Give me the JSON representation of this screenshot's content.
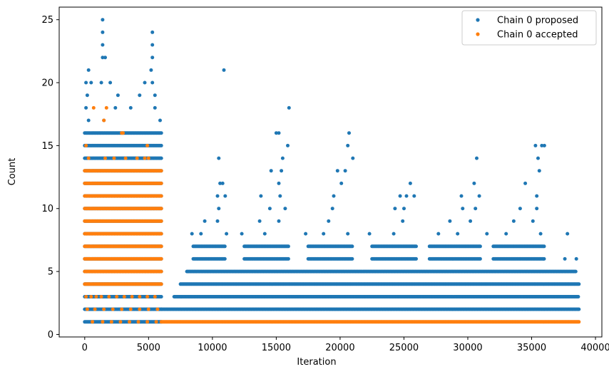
{
  "chart_data": {
    "type": "scatter",
    "xlabel": "Iteration",
    "ylabel": "Count",
    "xlim": [
      -2000,
      40500
    ],
    "ylim": [
      -0.2,
      26
    ],
    "x_ticks": [
      0,
      5000,
      10000,
      15000,
      20000,
      25000,
      30000,
      35000,
      40000
    ],
    "x_tick_labels": [
      "0",
      "5000",
      "10000",
      "15000",
      "20000",
      "25000",
      "30000",
      "35000",
      "40000"
    ],
    "y_ticks": [
      0,
      5,
      10,
      15,
      20,
      25
    ],
    "y_tick_labels": [
      "0",
      "5",
      "10",
      "15",
      "20",
      "25"
    ],
    "grid": false,
    "legend_position": "top-right",
    "series": [
      {
        "name": "Chain 0 proposed",
        "color": "#1f77b4",
        "band_ranges": [
          [
            0,
            6000,
            1,
            13
          ],
          [
            0,
            6000,
            14,
            16
          ],
          [
            6000,
            38700,
            2,
            2
          ],
          [
            7000,
            38700,
            3,
            3
          ],
          [
            7500,
            38700,
            4,
            4
          ],
          [
            8000,
            38500,
            5,
            5
          ],
          [
            8500,
            11000,
            6,
            7
          ],
          [
            12500,
            16000,
            6,
            7
          ],
          [
            17500,
            21000,
            6,
            7
          ],
          [
            22500,
            26000,
            6,
            7
          ],
          [
            27000,
            31000,
            6,
            7
          ],
          [
            32000,
            36000,
            6,
            7
          ]
        ],
        "scattered": [
          [
            1400,
            25
          ],
          [
            1400,
            24
          ],
          [
            5300,
            24
          ],
          [
            1400,
            23
          ],
          [
            5300,
            23
          ],
          [
            1400,
            22
          ],
          [
            1600,
            22
          ],
          [
            5300,
            22
          ],
          [
            300,
            21
          ],
          [
            5200,
            21
          ],
          [
            10900,
            21
          ],
          [
            100,
            20
          ],
          [
            500,
            20
          ],
          [
            1300,
            20
          ],
          [
            2000,
            20
          ],
          [
            4700,
            20
          ],
          [
            5300,
            20
          ],
          [
            200,
            19
          ],
          [
            2600,
            19
          ],
          [
            4300,
            19
          ],
          [
            5500,
            19
          ],
          [
            100,
            18
          ],
          [
            2400,
            18
          ],
          [
            3600,
            18
          ],
          [
            5500,
            18
          ],
          [
            16000,
            18
          ],
          [
            300,
            17
          ],
          [
            1500,
            17
          ],
          [
            5900,
            17
          ],
          [
            15000,
            16
          ],
          [
            15200,
            16
          ],
          [
            20700,
            16
          ],
          [
            20600,
            15
          ],
          [
            15900,
            15
          ],
          [
            35300,
            15
          ],
          [
            35800,
            15
          ],
          [
            36000,
            15
          ],
          [
            10500,
            14
          ],
          [
            15500,
            14
          ],
          [
            21000,
            14
          ],
          [
            30700,
            14
          ],
          [
            35500,
            14
          ],
          [
            10600,
            12
          ],
          [
            10800,
            12
          ],
          [
            15200,
            12
          ],
          [
            20100,
            12
          ],
          [
            25500,
            12
          ],
          [
            30500,
            12
          ],
          [
            34500,
            12
          ],
          [
            14600,
            13
          ],
          [
            15400,
            13
          ],
          [
            19800,
            13
          ],
          [
            20400,
            13
          ],
          [
            35600,
            13
          ],
          [
            10400,
            11
          ],
          [
            11000,
            11
          ],
          [
            13800,
            11
          ],
          [
            15300,
            11
          ],
          [
            19500,
            11
          ],
          [
            24700,
            11
          ],
          [
            25200,
            11
          ],
          [
            25800,
            11
          ],
          [
            29500,
            11
          ],
          [
            30900,
            11
          ],
          [
            35400,
            11
          ],
          [
            10500,
            10
          ],
          [
            14500,
            10
          ],
          [
            15700,
            10
          ],
          [
            19400,
            10
          ],
          [
            24300,
            10
          ],
          [
            25000,
            10
          ],
          [
            29600,
            10
          ],
          [
            30600,
            10
          ],
          [
            34100,
            10
          ],
          [
            35400,
            10
          ],
          [
            9400,
            9
          ],
          [
            10400,
            9
          ],
          [
            13700,
            9
          ],
          [
            15200,
            9
          ],
          [
            19100,
            9
          ],
          [
            24900,
            9
          ],
          [
            28600,
            9
          ],
          [
            30200,
            9
          ],
          [
            33600,
            9
          ],
          [
            35100,
            9
          ],
          [
            8400,
            8
          ],
          [
            9100,
            8
          ],
          [
            11100,
            8
          ],
          [
            12300,
            8
          ],
          [
            14100,
            8
          ],
          [
            17300,
            8
          ],
          [
            18700,
            8
          ],
          [
            20600,
            8
          ],
          [
            22300,
            8
          ],
          [
            24200,
            8
          ],
          [
            27700,
            8
          ],
          [
            29200,
            8
          ],
          [
            31500,
            8
          ],
          [
            33000,
            8
          ],
          [
            35700,
            8
          ],
          [
            37800,
            8
          ],
          [
            37600,
            6
          ],
          [
            38500,
            6
          ]
        ]
      },
      {
        "name": "Chain 0 accepted",
        "color": "#ff7f0e",
        "band_ranges": [
          [
            0,
            6000,
            4,
            13
          ],
          [
            6000,
            38700,
            1,
            1
          ]
        ],
        "scattered": [
          [
            700,
            18
          ],
          [
            1700,
            18
          ],
          [
            1500,
            17
          ],
          [
            2900,
            16
          ],
          [
            3000,
            16
          ],
          [
            100,
            15
          ],
          [
            4900,
            15
          ],
          [
            300,
            14
          ],
          [
            1600,
            14
          ],
          [
            2300,
            14
          ],
          [
            3200,
            14
          ],
          [
            4100,
            14
          ],
          [
            4700,
            14
          ],
          [
            5000,
            14
          ],
          [
            100,
            3
          ],
          [
            500,
            3
          ],
          [
            900,
            3
          ],
          [
            1300,
            3
          ],
          [
            1900,
            3
          ],
          [
            2500,
            3
          ],
          [
            3100,
            3
          ],
          [
            3700,
            3
          ],
          [
            4300,
            3
          ],
          [
            4900,
            3
          ],
          [
            5500,
            3
          ],
          [
            200,
            2
          ],
          [
            800,
            2
          ],
          [
            1500,
            2
          ],
          [
            2200,
            2
          ],
          [
            2900,
            2
          ],
          [
            3600,
            2
          ],
          [
            4300,
            2
          ],
          [
            5000,
            2
          ],
          [
            5700,
            2
          ],
          [
            600,
            1
          ],
          [
            1400,
            1
          ],
          [
            2100,
            1
          ],
          [
            2800,
            1
          ],
          [
            3500,
            1
          ],
          [
            4200,
            1
          ],
          [
            4900,
            1
          ],
          [
            5600,
            1
          ]
        ]
      }
    ]
  }
}
